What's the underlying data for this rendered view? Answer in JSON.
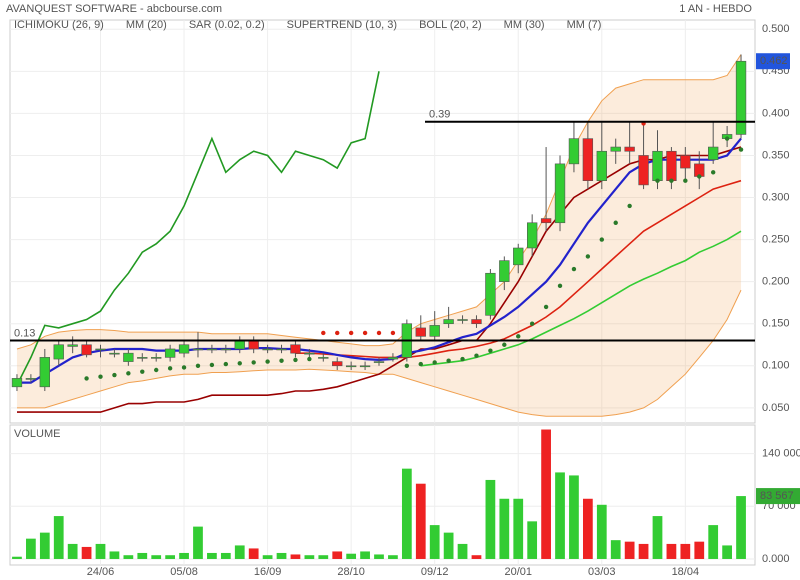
{
  "chart_data": {
    "type": "candlestick",
    "title": "AVANQUEST SOFTWARE - abcbourse.com",
    "timeframe": "1 AN - HEBDO",
    "categories": [
      null,
      null,
      null,
      null,
      null,
      null,
      "24/06",
      null,
      null,
      null,
      null,
      null,
      "05/08",
      null,
      null,
      null,
      null,
      null,
      "16/09",
      null,
      null,
      null,
      null,
      null,
      "28/10",
      null,
      null,
      null,
      null,
      null,
      "09/12",
      null,
      null,
      null,
      null,
      null,
      "20/01",
      null,
      null,
      null,
      null,
      null,
      "03/03",
      null,
      null,
      null,
      null,
      null,
      "18/04",
      null,
      null,
      null,
      null
    ],
    "open": [
      0.075,
      0.085,
      0.075,
      0.108,
      0.123,
      0.125,
      0.12,
      0.115,
      0.105,
      0.11,
      0.11,
      0.11,
      0.115,
      0.12,
      0.12,
      0.12,
      0.12,
      0.13,
      0.12,
      0.12,
      0.125,
      0.115,
      0.11,
      0.105,
      0.1,
      0.1,
      0.105,
      0.108,
      0.11,
      0.145,
      0.135,
      0.15,
      0.155,
      0.155,
      0.16,
      0.2,
      0.22,
      0.24,
      0.275,
      0.27,
      0.34,
      0.37,
      0.32,
      0.355,
      0.36,
      0.35,
      0.32,
      0.355,
      0.35,
      0.34,
      0.345,
      0.37,
      0.375
    ],
    "high": [
      0.09,
      0.09,
      0.12,
      0.13,
      0.135,
      0.13,
      0.125,
      0.12,
      0.12,
      0.115,
      0.115,
      0.125,
      0.13,
      0.14,
      0.125,
      0.125,
      0.135,
      0.135,
      0.125,
      0.125,
      0.13,
      0.12,
      0.115,
      0.11,
      0.105,
      0.105,
      0.11,
      0.115,
      0.155,
      0.16,
      0.165,
      0.17,
      0.16,
      0.16,
      0.215,
      0.23,
      0.245,
      0.28,
      0.36,
      0.35,
      0.39,
      0.39,
      0.39,
      0.37,
      0.39,
      0.39,
      0.38,
      0.36,
      0.36,
      0.355,
      0.39,
      0.385,
      0.47
    ],
    "low": [
      0.07,
      0.08,
      0.07,
      0.1,
      0.115,
      0.11,
      0.11,
      0.11,
      0.1,
      0.105,
      0.105,
      0.105,
      0.11,
      0.11,
      0.115,
      0.115,
      0.115,
      0.115,
      0.115,
      0.115,
      0.11,
      0.11,
      0.105,
      0.095,
      0.095,
      0.095,
      0.1,
      0.105,
      0.105,
      0.13,
      0.13,
      0.145,
      0.15,
      0.145,
      0.155,
      0.19,
      0.21,
      0.23,
      0.26,
      0.26,
      0.33,
      0.31,
      0.31,
      0.34,
      0.34,
      0.31,
      0.31,
      0.31,
      0.32,
      0.31,
      0.34,
      0.36,
      0.37
    ],
    "close": [
      0.085,
      0.085,
      0.11,
      0.125,
      0.125,
      0.113,
      0.12,
      0.115,
      0.115,
      0.11,
      0.11,
      0.12,
      0.125,
      0.12,
      0.12,
      0.12,
      0.13,
      0.12,
      0.12,
      0.12,
      0.115,
      0.115,
      0.11,
      0.1,
      0.1,
      0.1,
      0.105,
      0.11,
      0.15,
      0.135,
      0.148,
      0.155,
      0.155,
      0.15,
      0.21,
      0.225,
      0.24,
      0.27,
      0.27,
      0.34,
      0.37,
      0.32,
      0.355,
      0.36,
      0.355,
      0.315,
      0.355,
      0.32,
      0.335,
      0.325,
      0.36,
      0.375,
      0.462
    ],
    "up_color": "#33cc33",
    "down_color": "#ee2222",
    "ylim": [
      0.032,
      0.511
    ],
    "yticks": [
      {
        "value": 0.05,
        "label": "0.050"
      },
      {
        "value": 0.1,
        "label": "0.100"
      },
      {
        "value": 0.15,
        "label": "0.150"
      },
      {
        "value": 0.2,
        "label": "0.200"
      },
      {
        "value": 0.25,
        "label": "0.250"
      },
      {
        "value": 0.3,
        "label": "0.300"
      },
      {
        "value": 0.35,
        "label": "0.350"
      },
      {
        "value": 0.4,
        "label": "0.400"
      },
      {
        "value": 0.45,
        "label": "0.450"
      },
      {
        "value": 0.5,
        "label": "0.500"
      }
    ],
    "grid": true,
    "levels": [
      0.13,
      0.39
    ],
    "indicators": [
      {
        "name": "ICHIMOKU (26, 9)",
        "color": "#3355cc",
        "line_color": "#990000",
        "style": "line",
        "values": [
          0.045,
          0.045,
          0.045,
          0.045,
          0.045,
          0.045,
          0.045,
          0.05,
          0.055,
          0.055,
          0.057,
          0.057,
          0.057,
          0.06,
          0.065,
          0.065,
          0.065,
          0.065,
          0.065,
          0.067,
          0.07,
          0.07,
          0.072,
          0.075,
          0.08,
          0.085,
          0.09,
          0.1,
          0.11,
          0.12,
          0.12,
          0.125,
          0.13,
          0.13,
          0.15,
          0.175,
          0.2,
          0.23,
          0.26,
          0.28,
          0.3,
          0.31,
          0.32,
          0.33,
          0.34,
          0.345,
          0.345,
          0.35,
          0.35,
          0.35,
          0.35,
          0.355,
          0.36
        ]
      },
      {
        "name": "MM (20)",
        "color": "#dd2211",
        "style": "line",
        "values": [
          null,
          null,
          null,
          null,
          null,
          null,
          null,
          null,
          null,
          null,
          null,
          null,
          null,
          null,
          null,
          null,
          null,
          null,
          null,
          null,
          0.115,
          0.115,
          0.114,
          0.113,
          0.112,
          0.111,
          0.11,
          0.11,
          0.11,
          0.112,
          0.115,
          0.118,
          0.12,
          0.123,
          0.127,
          0.132,
          0.14,
          0.148,
          0.158,
          0.17,
          0.185,
          0.2,
          0.215,
          0.23,
          0.245,
          0.26,
          0.27,
          0.28,
          0.29,
          0.3,
          0.31,
          0.315,
          0.32
        ]
      },
      {
        "name": "SAR (0.02, 0.2)",
        "color": "#dd2211",
        "style": "dots",
        "values": [
          null,
          null,
          null,
          null,
          null,
          0.085,
          0.087,
          0.089,
          0.091,
          0.093,
          0.095,
          0.097,
          0.098,
          0.1,
          0.101,
          0.102,
          0.103,
          0.104,
          0.105,
          0.106,
          0.107,
          0.108,
          0.139,
          0.139,
          0.139,
          0.139,
          0.139,
          0.139,
          0.1,
          0.102,
          0.104,
          0.106,
          0.108,
          0.112,
          0.118,
          0.125,
          0.135,
          0.15,
          0.17,
          0.195,
          0.215,
          0.23,
          0.25,
          0.27,
          0.29,
          0.388,
          0.32,
          0.32,
          0.32,
          0.325,
          0.33,
          0.37,
          0.357
        ]
      },
      {
        "name": "SUPERTREND (10, 3)",
        "color": "#229922",
        "style": "line",
        "values": [
          0.077,
          0.11,
          0.148,
          0.145,
          0.15,
          0.155,
          0.165,
          0.19,
          0.21,
          0.235,
          0.245,
          0.26,
          0.29,
          0.33,
          0.37,
          0.33,
          0.345,
          0.355,
          0.35,
          0.33,
          0.355,
          0.35,
          0.345,
          0.335,
          0.365,
          0.37,
          0.45,
          null,
          null,
          null,
          null,
          null,
          null,
          null,
          null,
          null,
          null,
          null,
          null,
          null,
          null,
          null,
          null,
          null,
          null,
          null,
          null,
          null,
          null,
          null,
          null,
          null,
          null
        ]
      },
      {
        "name": "BOLL (20, 2)",
        "color": "#f0a050",
        "style": "band",
        "upper": [
          0.12,
          0.125,
          0.135,
          0.14,
          0.142,
          0.143,
          0.143,
          0.142,
          0.14,
          0.14,
          0.14,
          0.14,
          0.14,
          0.14,
          0.138,
          0.138,
          0.138,
          0.138,
          0.138,
          0.136,
          0.134,
          0.132,
          0.13,
          0.128,
          0.126,
          0.124,
          0.124,
          0.126,
          0.14,
          0.15,
          0.155,
          0.16,
          0.165,
          0.17,
          0.185,
          0.2,
          0.225,
          0.25,
          0.28,
          0.32,
          0.36,
          0.39,
          0.415,
          0.43,
          0.435,
          0.44,
          0.44,
          0.44,
          0.44,
          0.44,
          0.44,
          0.445,
          0.47
        ],
        "lower": [
          0.05,
          0.05,
          0.05,
          0.055,
          0.06,
          0.065,
          0.07,
          0.075,
          0.08,
          0.082,
          0.085,
          0.088,
          0.09,
          0.09,
          0.092,
          0.092,
          0.093,
          0.094,
          0.095,
          0.095,
          0.095,
          0.096,
          0.095,
          0.094,
          0.093,
          0.092,
          0.09,
          0.09,
          0.085,
          0.08,
          0.075,
          0.07,
          0.065,
          0.06,
          0.055,
          0.05,
          0.045,
          0.042,
          0.04,
          0.04,
          0.04,
          0.04,
          0.04,
          0.042,
          0.045,
          0.05,
          0.06,
          0.075,
          0.09,
          0.11,
          0.13,
          0.155,
          0.19
        ]
      },
      {
        "name": "MM (30)",
        "color": "#33cc33",
        "style": "line",
        "values": [
          null,
          null,
          null,
          null,
          null,
          null,
          null,
          null,
          null,
          null,
          null,
          null,
          null,
          null,
          null,
          null,
          null,
          null,
          null,
          null,
          null,
          null,
          null,
          null,
          null,
          null,
          null,
          null,
          null,
          0.1,
          0.102,
          0.104,
          0.106,
          0.11,
          0.115,
          0.12,
          0.125,
          0.132,
          0.14,
          0.148,
          0.156,
          0.165,
          0.175,
          0.185,
          0.195,
          0.203,
          0.21,
          0.218,
          0.225,
          0.235,
          0.242,
          0.25,
          0.26
        ]
      },
      {
        "name": "MM (7)",
        "color": "#2222cc",
        "style": "line",
        "values": [
          0.08,
          0.08,
          0.09,
          0.1,
          0.11,
          0.115,
          0.118,
          0.12,
          0.12,
          0.12,
          0.118,
          0.118,
          0.118,
          0.12,
          0.12,
          0.12,
          0.12,
          0.121,
          0.121,
          0.12,
          0.12,
          0.118,
          0.116,
          0.113,
          0.11,
          0.108,
          0.107,
          0.108,
          0.115,
          0.118,
          0.122,
          0.128,
          0.134,
          0.138,
          0.148,
          0.158,
          0.17,
          0.185,
          0.2,
          0.22,
          0.245,
          0.27,
          0.29,
          0.31,
          0.33,
          0.34,
          0.345,
          0.345,
          0.345,
          0.345,
          0.345,
          0.35,
          0.37
        ]
      }
    ],
    "volume": {
      "label": "VOLUME",
      "values": [
        3000,
        27000,
        35000,
        57000,
        20000,
        16000,
        20000,
        10000,
        5000,
        8000,
        5000,
        5000,
        8000,
        43000,
        8000,
        8000,
        18000,
        14000,
        5000,
        8000,
        6000,
        5000,
        5000,
        10000,
        7000,
        10000,
        6000,
        5000,
        120000,
        100000,
        45000,
        35000,
        20000,
        5000,
        105000,
        80000,
        80000,
        50000,
        172000,
        115000,
        111000,
        80000,
        72000,
        25000,
        23000,
        20000,
        57000,
        20000,
        20000,
        23000,
        45000,
        18000,
        83567
      ],
      "last_value_label": "83 567",
      "ylim": [
        -8000,
        178000
      ],
      "yticks": [
        {
          "value": 0,
          "label": "0.000"
        },
        {
          "value": 70000,
          "label": "70 000"
        },
        {
          "value": 140000,
          "label": "140 000"
        }
      ]
    }
  }
}
